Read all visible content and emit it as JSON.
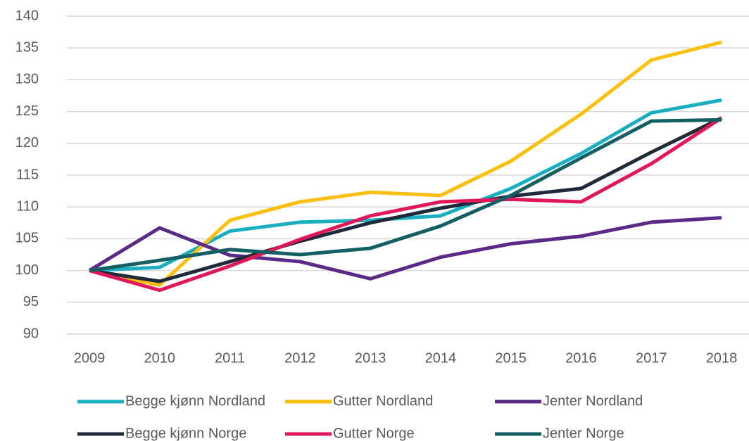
{
  "chart_data": {
    "type": "line",
    "x": [
      "2009",
      "2010",
      "2011",
      "2012",
      "2013",
      "2014",
      "2015",
      "2016",
      "2017",
      "2018"
    ],
    "series": [
      {
        "name": "Begge kjønn Nordland",
        "color": "#1aafc0",
        "values": [
          100,
          100.5,
          106.2,
          107.6,
          107.9,
          108.6,
          112.9,
          118.4,
          124.8,
          126.8
        ]
      },
      {
        "name": "Gutter Nordland",
        "color": "#fbbf0f",
        "values": [
          100,
          97.7,
          107.9,
          110.8,
          112.3,
          111.8,
          117.2,
          124.6,
          133.1,
          135.9
        ]
      },
      {
        "name": "Jenter Nordland",
        "color": "#5b2a86",
        "values": [
          100,
          106.7,
          102.4,
          101.4,
          98.7,
          102.1,
          104.2,
          105.4,
          107.6,
          108.3
        ]
      },
      {
        "name": "Begge kjønn Norge",
        "color": "#1f2a3a",
        "values": [
          100,
          98.3,
          101.4,
          104.6,
          107.5,
          109.8,
          111.7,
          112.9,
          118.6,
          124
        ]
      },
      {
        "name": "Gutter Norge",
        "color": "#e0185a",
        "values": [
          100,
          96.9,
          100.7,
          104.9,
          108.6,
          110.8,
          111.2,
          110.8,
          116.8,
          124
        ]
      },
      {
        "name": "Jenter Norge",
        "color": "#135f63",
        "values": [
          100,
          101.6,
          103.3,
          102.5,
          103.5,
          107,
          111.8,
          117.7,
          123.5,
          123.7
        ]
      }
    ],
    "ylim": [
      90,
      140
    ],
    "yticks": [
      90,
      95,
      100,
      105,
      110,
      115,
      120,
      125,
      130,
      135,
      140
    ],
    "grid": true,
    "legend": "bottom"
  }
}
